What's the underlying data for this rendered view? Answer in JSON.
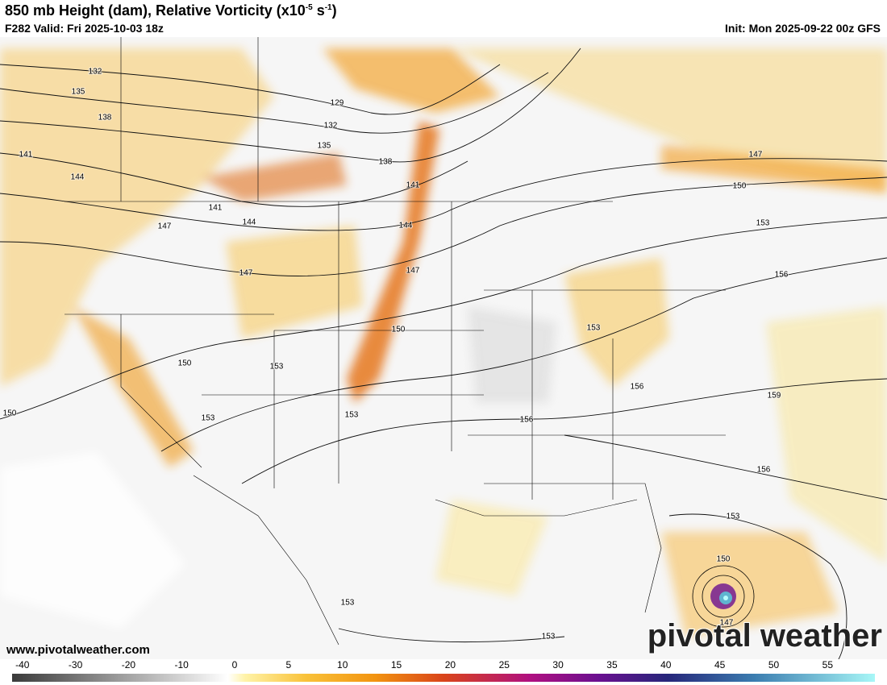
{
  "header": {
    "title_parts": [
      "850 mb Height (dam), Relative Vorticity (x10",
      "-5",
      " s",
      "-1",
      ")"
    ],
    "valid": "F282 Valid: Fri 2025-10-03 18z",
    "init": "Init: Mon 2025-09-22 00z GFS"
  },
  "contour_labels": [
    "132",
    "135",
    "138",
    "141",
    "144",
    "129",
    "132",
    "135",
    "138",
    "141",
    "141",
    "144",
    "147",
    "144",
    "147",
    "147",
    "150",
    "150",
    "153",
    "153",
    "153",
    "156",
    "153",
    "156",
    "156",
    "159",
    "156",
    "153",
    "150",
    "147",
    "150",
    "153",
    "150",
    "147",
    "153",
    "153"
  ],
  "website": "www.pivotalweather.com",
  "watermark": "pivotal weather",
  "colorbar": {
    "ticks": [
      -40,
      -30,
      -20,
      -10,
      0,
      5,
      10,
      15,
      20,
      25,
      30,
      35,
      40,
      45,
      50,
      55
    ]
  }
}
